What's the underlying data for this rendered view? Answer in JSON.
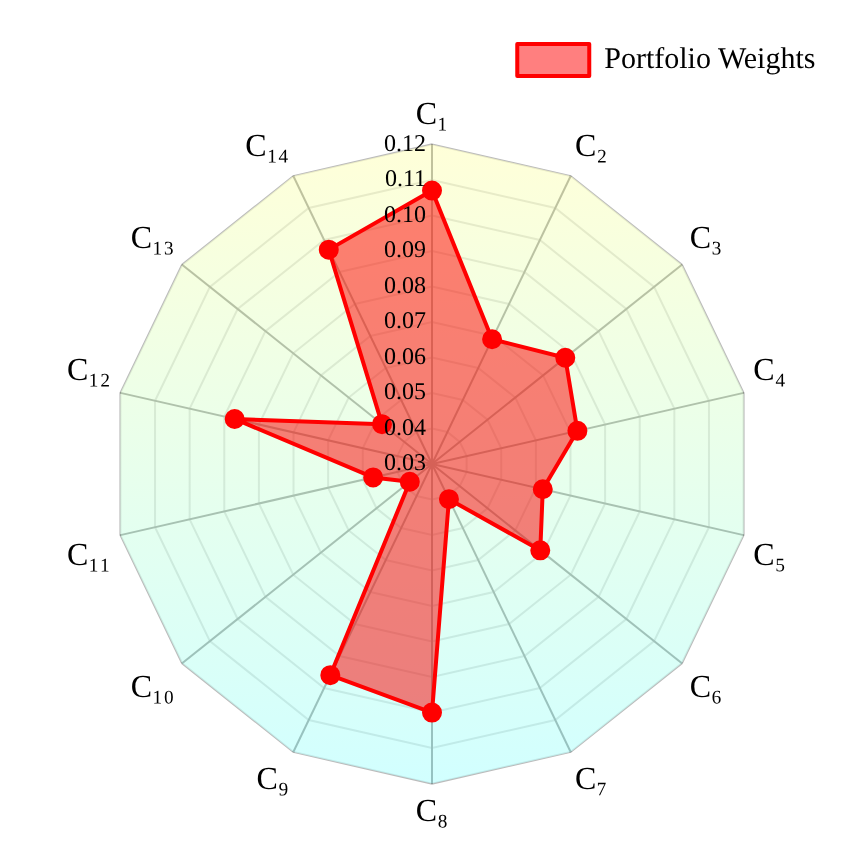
{
  "chart_data": {
    "type": "radar",
    "categories": [
      "C₁",
      "C₂",
      "C₃",
      "C₄",
      "C₅",
      "C₆",
      "C₇",
      "C₈",
      "C₉",
      "C₁₀",
      "C₁₁",
      "C₁₂",
      "C₁₃",
      "C₁₄"
    ],
    "series": [
      {
        "name": "Portfolio Weights",
        "color": "#ff0000",
        "values": [
          0.107,
          0.069,
          0.078,
          0.072,
          0.062,
          0.069,
          0.041,
          0.1,
          0.096,
          0.038,
          0.047,
          0.087,
          0.048,
          0.097
        ]
      }
    ],
    "ylim": [
      0.03,
      0.12
    ],
    "yticks": [
      0.03,
      0.04,
      0.05,
      0.06,
      0.07,
      0.08,
      0.09,
      {
        "value": 0.1,
        "label": "0.10"
      },
      0.11,
      0.12
    ],
    "grid": true,
    "legend": "top right",
    "marker": "circle",
    "line_style": "solid"
  }
}
